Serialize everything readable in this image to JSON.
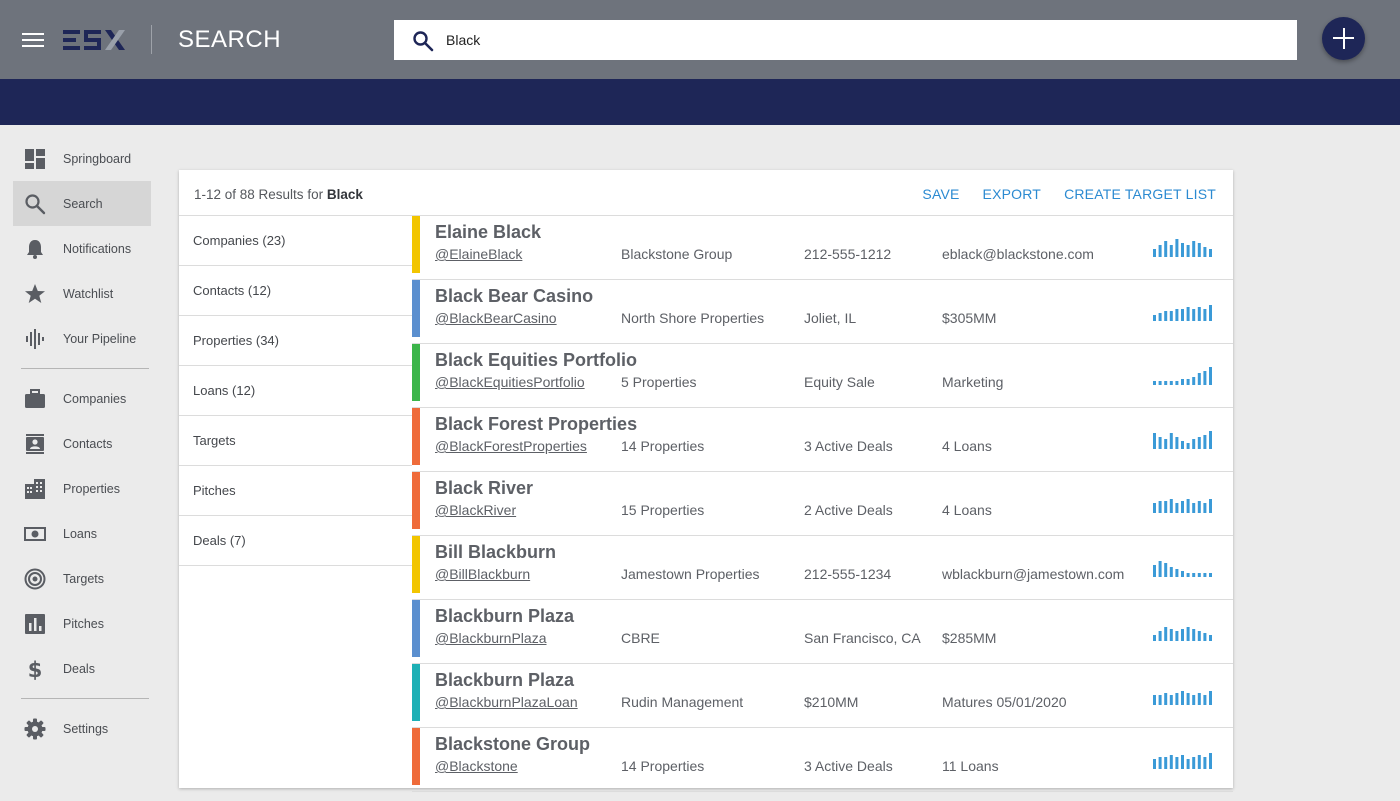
{
  "header": {
    "title": "SEARCH",
    "search_value": "Black",
    "colors": {
      "topbar": "#6e737c",
      "band": "#1e2657",
      "accent": "#2b8ad1"
    }
  },
  "sidebar": {
    "items": [
      {
        "label": "Springboard",
        "icon": "dashboard-icon"
      },
      {
        "label": "Search",
        "icon": "search-icon",
        "active": true
      },
      {
        "label": "Notifications",
        "icon": "bell-icon"
      },
      {
        "label": "Watchlist",
        "icon": "star-icon"
      },
      {
        "label": "Your Pipeline",
        "icon": "waveform-icon"
      },
      {
        "label": "Companies",
        "icon": "briefcase-icon"
      },
      {
        "label": "Contacts",
        "icon": "contact-card-icon"
      },
      {
        "label": "Properties",
        "icon": "building-icon"
      },
      {
        "label": "Loans",
        "icon": "money-icon"
      },
      {
        "label": "Targets",
        "icon": "target-icon"
      },
      {
        "label": "Pitches",
        "icon": "bar-chart-icon"
      },
      {
        "label": "Deals",
        "icon": "dollar-icon"
      },
      {
        "label": "Settings",
        "icon": "gear-icon"
      }
    ]
  },
  "results": {
    "count_prefix": "1-12 of 88 Results for ",
    "query": "Black",
    "actions": {
      "save": "SAVE",
      "export": "EXPORT",
      "create_target_list": "CREATE TARGET LIST"
    },
    "filters": [
      "Companies (23)",
      "Contacts (12)",
      "Properties (34)",
      "Loans (12)",
      "Targets",
      "Pitches",
      "Deals (7)"
    ],
    "rows": [
      {
        "name": "Elaine Black",
        "handle": "@ElaineBlack",
        "c1": "Blackstone Group",
        "c2": "212-555-1212",
        "c3": "eblack@blackstone.com",
        "color": "#f2c500",
        "activity": [
          4,
          6,
          8,
          6,
          9,
          7,
          6,
          8,
          7,
          5,
          4
        ]
      },
      {
        "name": "Black Bear Casino",
        "handle": "@BlackBearCasino",
        "c1": "North Shore Properties",
        "c2": "Joliet, IL",
        "c3": "$305MM",
        "color": "#5b8fcf",
        "activity": [
          3,
          4,
          5,
          5,
          6,
          6,
          7,
          6,
          7,
          6,
          8
        ]
      },
      {
        "name": "Black Equities Portfolio",
        "handle": "@BlackEquitiesPortfolio",
        "c1": "5 Properties",
        "c2": "Equity Sale",
        "c3": "Marketing",
        "color": "#3cb54a",
        "activity": [
          2,
          2,
          2,
          2,
          2,
          3,
          3,
          4,
          6,
          7,
          9
        ]
      },
      {
        "name": "Black Forest Properties",
        "handle": "@BlackForestProperties",
        "c1": "14 Properties",
        "c2": "3 Active Deals",
        "c3": "4 Loans",
        "color": "#ef6b3a",
        "activity": [
          8,
          6,
          5,
          8,
          6,
          4,
          3,
          5,
          6,
          7,
          9
        ]
      },
      {
        "name": "Black River",
        "handle": "@BlackRiver",
        "c1": "15 Properties",
        "c2": "2 Active Deals",
        "c3": "4 Loans",
        "color": "#ef6b3a",
        "activity": [
          5,
          6,
          6,
          7,
          5,
          6,
          7,
          5,
          6,
          5,
          7
        ]
      },
      {
        "name": "Bill Blackburn",
        "handle": "@BillBlackburn",
        "c1": "Jamestown Properties",
        "c2": "212-555-1234",
        "c3": "wblackburn@jamestown.com",
        "color": "#f2c500",
        "activity": [
          6,
          8,
          7,
          5,
          4,
          3,
          2,
          2,
          2,
          2,
          2
        ]
      },
      {
        "name": "Blackburn Plaza",
        "handle": "@BlackburnPlaza",
        "c1": "CBRE",
        "c2": "San Francisco, CA",
        "c3": "$285MM",
        "color": "#5b8fcf",
        "activity": [
          3,
          5,
          7,
          6,
          5,
          6,
          7,
          6,
          5,
          4,
          3
        ]
      },
      {
        "name": "Blackburn Plaza",
        "handle": "@BlackburnPlazaLoan",
        "c1": "Rudin Management",
        "c2": "$210MM",
        "c3": "Matures 05/01/2020",
        "color": "#1eb0b5",
        "activity": [
          5,
          5,
          6,
          5,
          6,
          7,
          6,
          5,
          6,
          5,
          7
        ]
      },
      {
        "name": "Blackstone Group",
        "handle": "@Blackstone",
        "c1": "14 Properties",
        "c2": "3 Active Deals",
        "c3": "11 Loans",
        "color": "#ef6b3a",
        "activity": [
          5,
          6,
          6,
          7,
          6,
          7,
          5,
          6,
          7,
          6,
          8
        ]
      }
    ]
  }
}
